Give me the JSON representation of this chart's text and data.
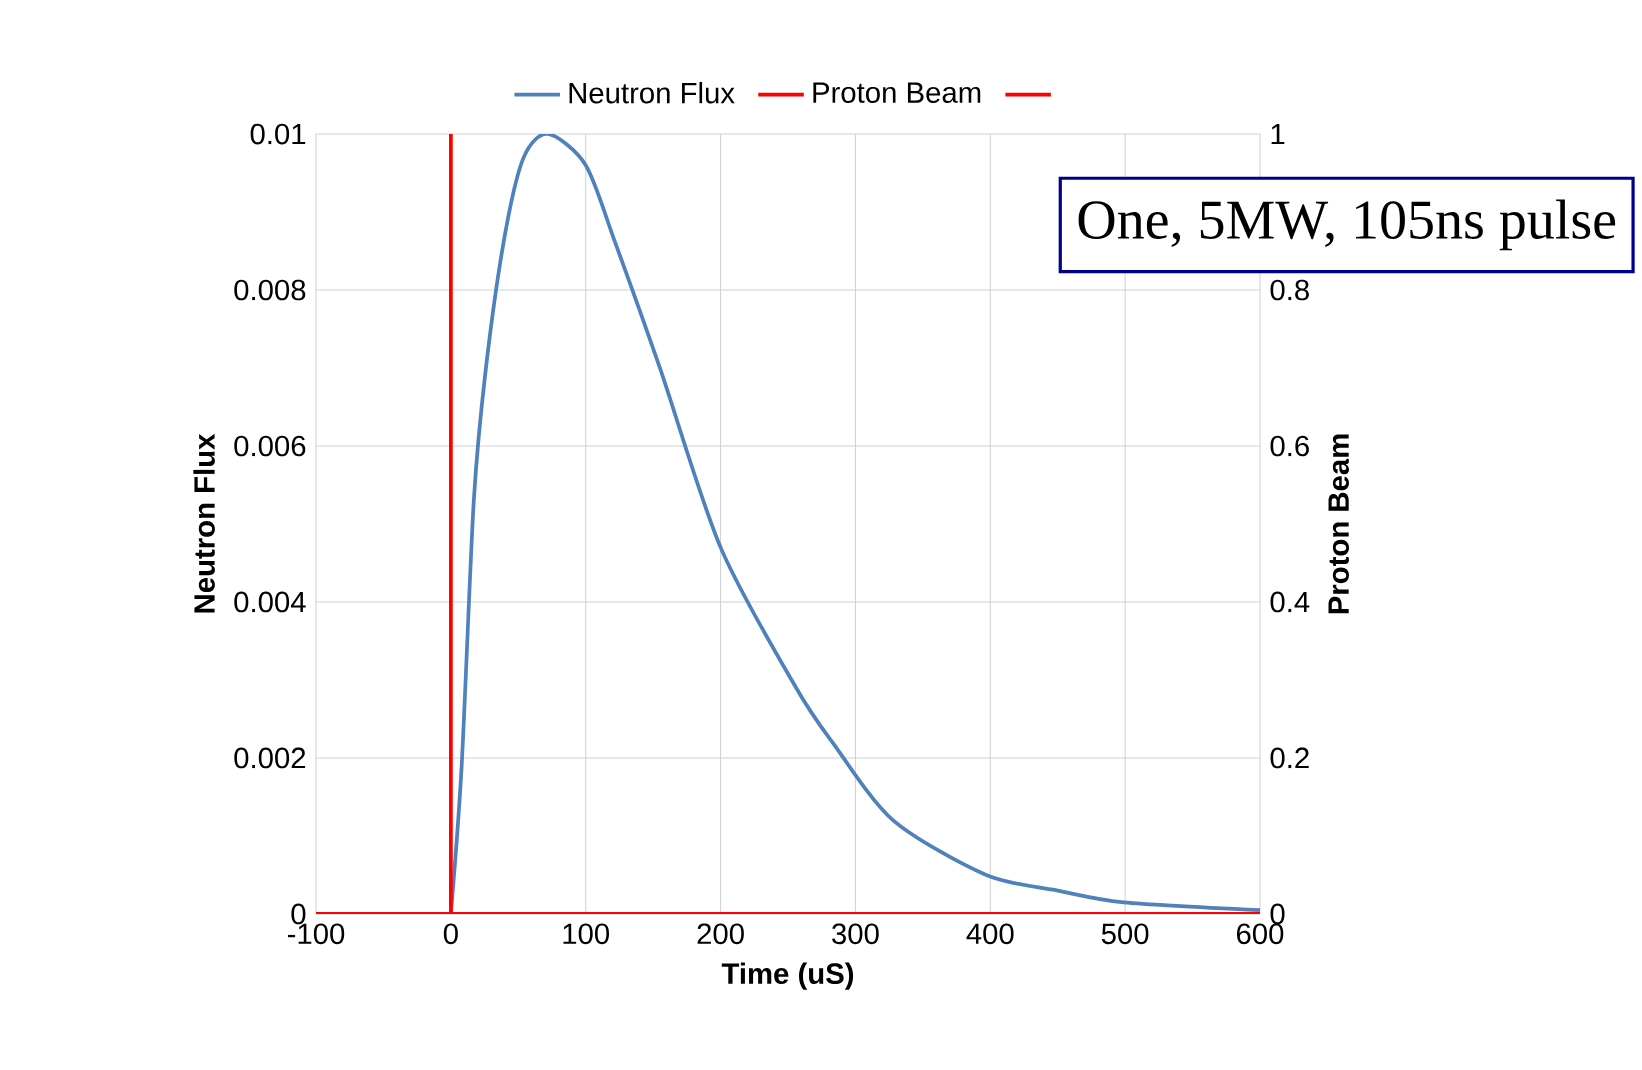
{
  "chart_data": {
    "type": "line",
    "xlabel": "Time (uS)",
    "ylabel": "Neutron Flux",
    "y2label": "Proton Beam",
    "xlim": [
      -100,
      600
    ],
    "xticks": [
      -100,
      0,
      100,
      200,
      300,
      400,
      500,
      600
    ],
    "ylim": [
      0,
      0.01
    ],
    "yticks": [
      0,
      0.002,
      0.004,
      0.006,
      0.008,
      0.01
    ],
    "y2lim": [
      0,
      1
    ],
    "y2ticks": [
      0,
      0.2,
      0.4,
      0.6,
      0.8,
      1
    ],
    "grid": true,
    "legend": "top",
    "series": [
      {
        "name": "Neutron Flux",
        "color": "#4f81bd",
        "x": [
          0,
          8,
          17,
          26,
          40,
          54,
          72,
          100,
          122,
          155,
          200,
          256,
          283,
          328,
          397,
          450,
          499,
          600
        ],
        "values": [
          0,
          0.0019,
          0.0053,
          0.007,
          0.0087,
          0.0097,
          0.01,
          0.0096,
          0.0086,
          0.007,
          0.0047,
          0.0029,
          0.0022,
          0.0012,
          0.0005,
          0.0003,
          0.00015,
          5e-05
        ]
      },
      {
        "name": "Proton Beam",
        "color": "#ff0000",
        "axis": "y2",
        "x": [
          0,
          0
        ],
        "values": [
          0,
          1
        ]
      },
      {
        "color": "#ff0000",
        "axis": "y2",
        "x": [
          -100,
          600
        ],
        "values": [
          0,
          0
        ]
      }
    ],
    "annotations": [
      "One, 5MW, 105ns pulse"
    ]
  }
}
